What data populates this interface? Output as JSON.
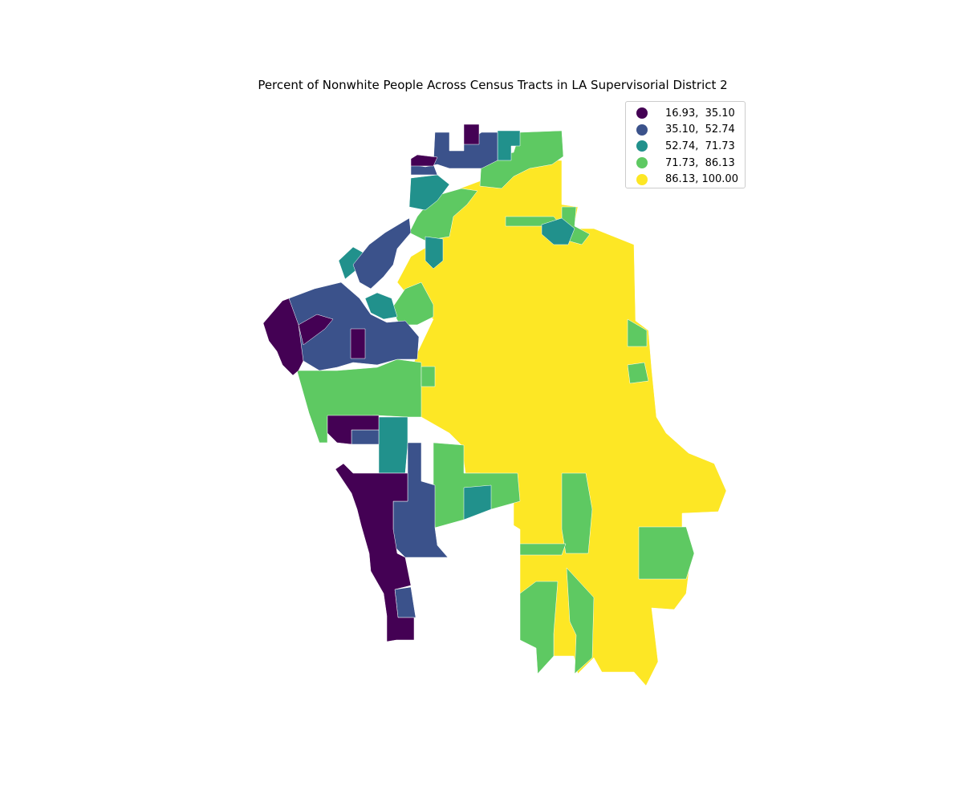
{
  "title": "Percent of Nonwhite People Across Census Tracts in LA Supervisorial District 2",
  "legend": {
    "items": [
      {
        "label": "16.93,  35.10",
        "color": "#440154"
      },
      {
        "label": "35.10,  52.74",
        "color": "#3b528b"
      },
      {
        "label": "52.74,  71.73",
        "color": "#21918c"
      },
      {
        "label": "71.73,  86.13",
        "color": "#5ec962"
      },
      {
        "label": "86.13, 100.00",
        "color": "#fde725"
      }
    ]
  },
  "colors": {
    "c1": "#440154",
    "c2": "#3b528b",
    "c3": "#21918c",
    "c4": "#5ec962",
    "c5": "#fde725"
  }
}
